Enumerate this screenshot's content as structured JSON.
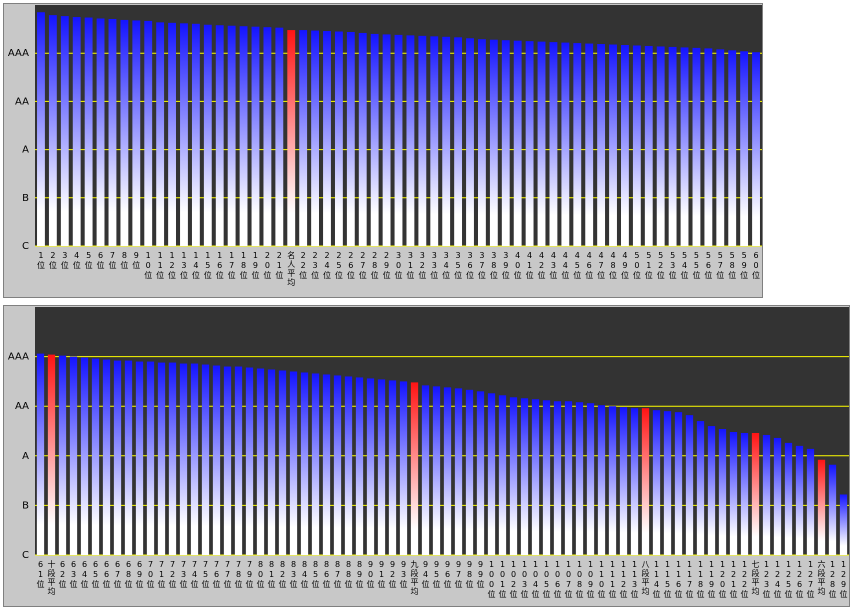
{
  "chart_data": [
    {
      "type": "bar",
      "grid": true,
      "grid_color": "#ffff00",
      "ylim": [
        0,
        5
      ],
      "yticks": [
        {
          "value": 0,
          "label": "C"
        },
        {
          "value": 1,
          "label": "B"
        },
        {
          "value": 2,
          "label": "A"
        },
        {
          "value": 3,
          "label": "AA"
        },
        {
          "value": 4,
          "label": "AAA"
        }
      ],
      "categories": [
        "1位",
        "2位",
        "3位",
        "4位",
        "5位",
        "6位",
        "7位",
        "8位",
        "9位",
        "10位",
        "11位",
        "12位",
        "13位",
        "14位",
        "15位",
        "16位",
        "17位",
        "18位",
        "19位",
        "20位",
        "21位",
        "名人平均",
        "22位",
        "23位",
        "24位",
        "25位",
        "26位",
        "27位",
        "28位",
        "29位",
        "30位",
        "31位",
        "32位",
        "33位",
        "34位",
        "35位",
        "36位",
        "37位",
        "38位",
        "39位",
        "40位",
        "41位",
        "42位",
        "43位",
        "44位",
        "45位",
        "46位",
        "47位",
        "48位",
        "49位",
        "50位",
        "51位",
        "52位",
        "53位",
        "54位",
        "55位",
        "56位",
        "57位",
        "58位",
        "59位",
        "60位"
      ],
      "values": [
        4.85,
        4.79,
        4.77,
        4.75,
        4.74,
        4.72,
        4.71,
        4.69,
        4.68,
        4.67,
        4.64,
        4.63,
        4.62,
        4.61,
        4.59,
        4.58,
        4.57,
        4.56,
        4.55,
        4.54,
        4.53,
        4.48,
        4.48,
        4.47,
        4.46,
        4.45,
        4.44,
        4.42,
        4.4,
        4.39,
        4.38,
        4.37,
        4.36,
        4.35,
        4.34,
        4.33,
        4.31,
        4.29,
        4.28,
        4.27,
        4.26,
        4.25,
        4.24,
        4.23,
        4.22,
        4.21,
        4.2,
        4.19,
        4.18,
        4.17,
        4.16,
        4.15,
        4.14,
        4.13,
        4.12,
        4.11,
        4.1,
        4.08,
        4.06,
        4.04,
        4.02
      ],
      "colors": [
        "#1414ff",
        "#1414ff",
        "#1414ff",
        "#1414ff",
        "#1414ff",
        "#1414ff",
        "#1414ff",
        "#1414ff",
        "#1414ff",
        "#1414ff",
        "#1414ff",
        "#1414ff",
        "#1414ff",
        "#1414ff",
        "#1414ff",
        "#1414ff",
        "#1414ff",
        "#1414ff",
        "#1414ff",
        "#1414ff",
        "#1414ff",
        "#ff1414",
        "#1414ff",
        "#1414ff",
        "#1414ff",
        "#1414ff",
        "#1414ff",
        "#1414ff",
        "#1414ff",
        "#1414ff",
        "#1414ff",
        "#1414ff",
        "#1414ff",
        "#1414ff",
        "#1414ff",
        "#1414ff",
        "#1414ff",
        "#1414ff",
        "#1414ff",
        "#1414ff",
        "#1414ff",
        "#1414ff",
        "#1414ff",
        "#1414ff",
        "#1414ff",
        "#1414ff",
        "#1414ff",
        "#1414ff",
        "#1414ff",
        "#1414ff",
        "#1414ff",
        "#1414ff",
        "#1414ff",
        "#1414ff",
        "#1414ff",
        "#1414ff",
        "#1414ff",
        "#1414ff",
        "#1414ff",
        "#1414ff",
        "#1414ff"
      ]
    },
    {
      "type": "bar",
      "grid": true,
      "grid_color": "#ffff00",
      "ylim": [
        0,
        5
      ],
      "yticks": [
        {
          "value": 0,
          "label": "C"
        },
        {
          "value": 1,
          "label": "B"
        },
        {
          "value": 2,
          "label": "A"
        },
        {
          "value": 3,
          "label": "AA"
        },
        {
          "value": 4,
          "label": "AAA"
        }
      ],
      "categories": [
        "61位",
        "十段平均",
        "62位",
        "63位",
        "64位",
        "65位",
        "66位",
        "67位",
        "68位",
        "69位",
        "70位",
        "71位",
        "72位",
        "73位",
        "74位",
        "75位",
        "76位",
        "77位",
        "78位",
        "79位",
        "80位",
        "81位",
        "82位",
        "83位",
        "84位",
        "85位",
        "86位",
        "87位",
        "88位",
        "89位",
        "90位",
        "91位",
        "92位",
        "93位",
        "九段平均",
        "94位",
        "95位",
        "96位",
        "97位",
        "98位",
        "99位",
        "100位",
        "101位",
        "102位",
        "103位",
        "104位",
        "105位",
        "106位",
        "107位",
        "108位",
        "109位",
        "110位",
        "111位",
        "112位",
        "113位",
        "八段平均",
        "114位",
        "115位",
        "116位",
        "117位",
        "118位",
        "119位",
        "120位",
        "121位",
        "122位",
        "七段平均",
        "123位",
        "124位",
        "125位",
        "126位",
        "127位",
        "六段平均",
        "128位",
        "129位"
      ],
      "values": [
        4.06,
        4.04,
        4.02,
        4.0,
        3.98,
        3.96,
        3.94,
        3.92,
        3.92,
        3.9,
        3.9,
        3.88,
        3.88,
        3.86,
        3.86,
        3.84,
        3.82,
        3.8,
        3.8,
        3.78,
        3.76,
        3.74,
        3.72,
        3.7,
        3.68,
        3.66,
        3.64,
        3.62,
        3.6,
        3.58,
        3.56,
        3.54,
        3.52,
        3.5,
        3.48,
        3.42,
        3.4,
        3.38,
        3.36,
        3.33,
        3.3,
        3.26,
        3.22,
        3.18,
        3.16,
        3.14,
        3.12,
        3.1,
        3.1,
        3.08,
        3.06,
        3.02,
        3.0,
        2.98,
        2.96,
        2.96,
        2.92,
        2.9,
        2.88,
        2.82,
        2.7,
        2.6,
        2.54,
        2.48,
        2.46,
        2.46,
        2.42,
        2.36,
        2.26,
        2.2,
        2.14,
        1.92,
        1.82,
        1.22
      ],
      "colors": [
        "#1414ff",
        "#ff1414",
        "#1414ff",
        "#1414ff",
        "#1414ff",
        "#1414ff",
        "#1414ff",
        "#1414ff",
        "#1414ff",
        "#1414ff",
        "#1414ff",
        "#1414ff",
        "#1414ff",
        "#1414ff",
        "#1414ff",
        "#1414ff",
        "#1414ff",
        "#1414ff",
        "#1414ff",
        "#1414ff",
        "#1414ff",
        "#1414ff",
        "#1414ff",
        "#1414ff",
        "#1414ff",
        "#1414ff",
        "#1414ff",
        "#1414ff",
        "#1414ff",
        "#1414ff",
        "#1414ff",
        "#1414ff",
        "#1414ff",
        "#1414ff",
        "#ff1414",
        "#1414ff",
        "#1414ff",
        "#1414ff",
        "#1414ff",
        "#1414ff",
        "#1414ff",
        "#1414ff",
        "#1414ff",
        "#1414ff",
        "#1414ff",
        "#1414ff",
        "#1414ff",
        "#1414ff",
        "#1414ff",
        "#1414ff",
        "#1414ff",
        "#1414ff",
        "#1414ff",
        "#1414ff",
        "#1414ff",
        "#ff1414",
        "#1414ff",
        "#1414ff",
        "#1414ff",
        "#1414ff",
        "#1414ff",
        "#1414ff",
        "#1414ff",
        "#1414ff",
        "#1414ff",
        "#ff1414",
        "#1414ff",
        "#1414ff",
        "#1414ff",
        "#1414ff",
        "#1414ff",
        "#ff1414",
        "#1414ff",
        "#1414ff"
      ]
    }
  ]
}
